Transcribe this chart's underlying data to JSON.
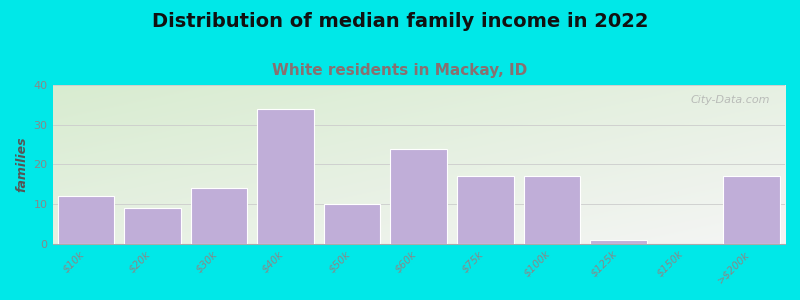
{
  "title": "Distribution of median family income in 2022",
  "subtitle": "White residents in Mackay, ID",
  "ylabel": "families",
  "categories": [
    "$10k",
    "$20k",
    "$30k",
    "$40k",
    "$50k",
    "$60k",
    "$75k",
    "$100k",
    "$125k",
    "$150k",
    ">$200k"
  ],
  "values": [
    12,
    9,
    14,
    34,
    10,
    24,
    17,
    17,
    1,
    0,
    17
  ],
  "bar_color": "#c0aed8",
  "bar_edge_color": "#ffffff",
  "ylim": [
    0,
    40
  ],
  "yticks": [
    0,
    10,
    20,
    30,
    40
  ],
  "background_outer": "#00e8e8",
  "background_plot_top_left": "#d8ecd0",
  "background_plot_bottom_right": "#f5f5f5",
  "title_fontsize": 14,
  "subtitle_fontsize": 11,
  "subtitle_color": "#887070",
  "watermark": "City-Data.com",
  "tick_label_color": "#888888",
  "grid_color": "#cccccc",
  "ylabel_color": "#555555"
}
